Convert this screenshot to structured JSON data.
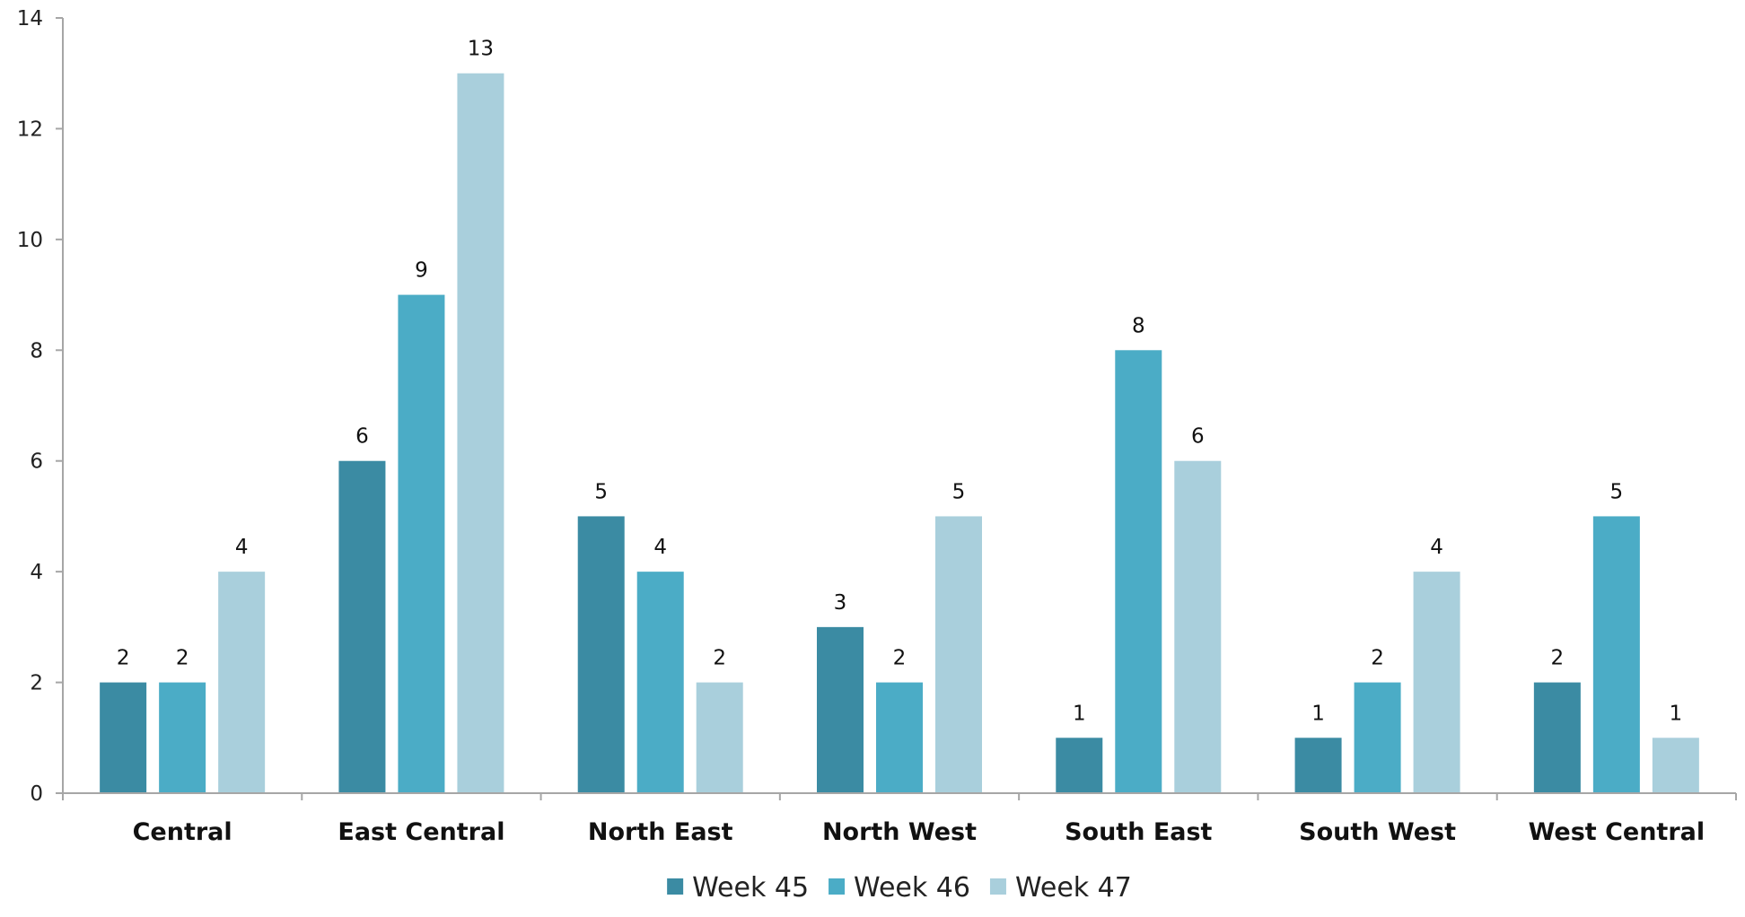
{
  "chart_data": {
    "type": "bar",
    "categories": [
      "Central",
      "East Central",
      "North East",
      "North West",
      "South East",
      "South West",
      "West Central"
    ],
    "series": [
      {
        "name": "Week 45",
        "color": "#3B8BA3",
        "values": [
          2,
          6,
          5,
          3,
          1,
          1,
          2
        ]
      },
      {
        "name": "Week 46",
        "color": "#4BACC6",
        "values": [
          2,
          9,
          4,
          2,
          8,
          2,
          5
        ]
      },
      {
        "name": "Week 47",
        "color": "#A9CFDC",
        "values": [
          4,
          13,
          2,
          5,
          6,
          4,
          1
        ]
      }
    ],
    "title": "",
    "xlabel": "",
    "ylabel": "",
    "ylim": [
      0,
      14
    ],
    "yticks": [
      0,
      2,
      4,
      6,
      8,
      10,
      12,
      14
    ],
    "grid": false,
    "legend_position": "bottom",
    "axis_color": "#A6A6A6"
  }
}
